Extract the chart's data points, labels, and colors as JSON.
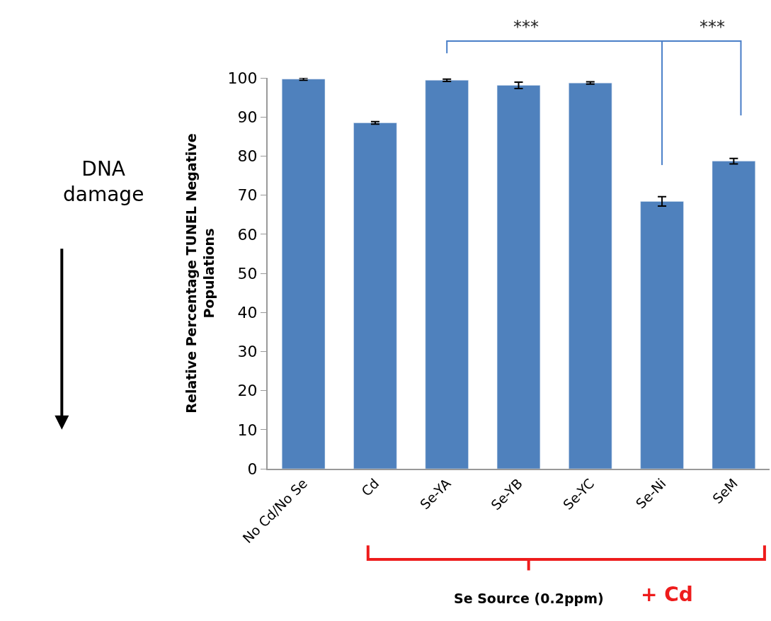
{
  "chart_data": {
    "type": "bar",
    "ylabel": "Relative Percentage TUNEL Negative\nPopulations",
    "xlabel": "Se Source (0.2ppm)",
    "categories": [
      "No Cd/No Se",
      "Cd",
      "Se-YA",
      "Se-YB",
      "Se-YC",
      "Se-Ni",
      "SeM"
    ],
    "values": [
      99.7,
      88.5,
      99.4,
      98.1,
      98.7,
      68.4,
      78.7
    ],
    "errors": [
      0.3,
      0.3,
      0.3,
      0.8,
      0.3,
      1.2,
      0.7
    ],
    "color": "#4f81bd",
    "ylim": [
      0,
      100
    ],
    "yticks": [
      0,
      10,
      20,
      30,
      40,
      50,
      60,
      70,
      80,
      90,
      100
    ],
    "annotations": [
      "***",
      "***",
      "DNA\ndamage",
      "+ Cd"
    ]
  }
}
